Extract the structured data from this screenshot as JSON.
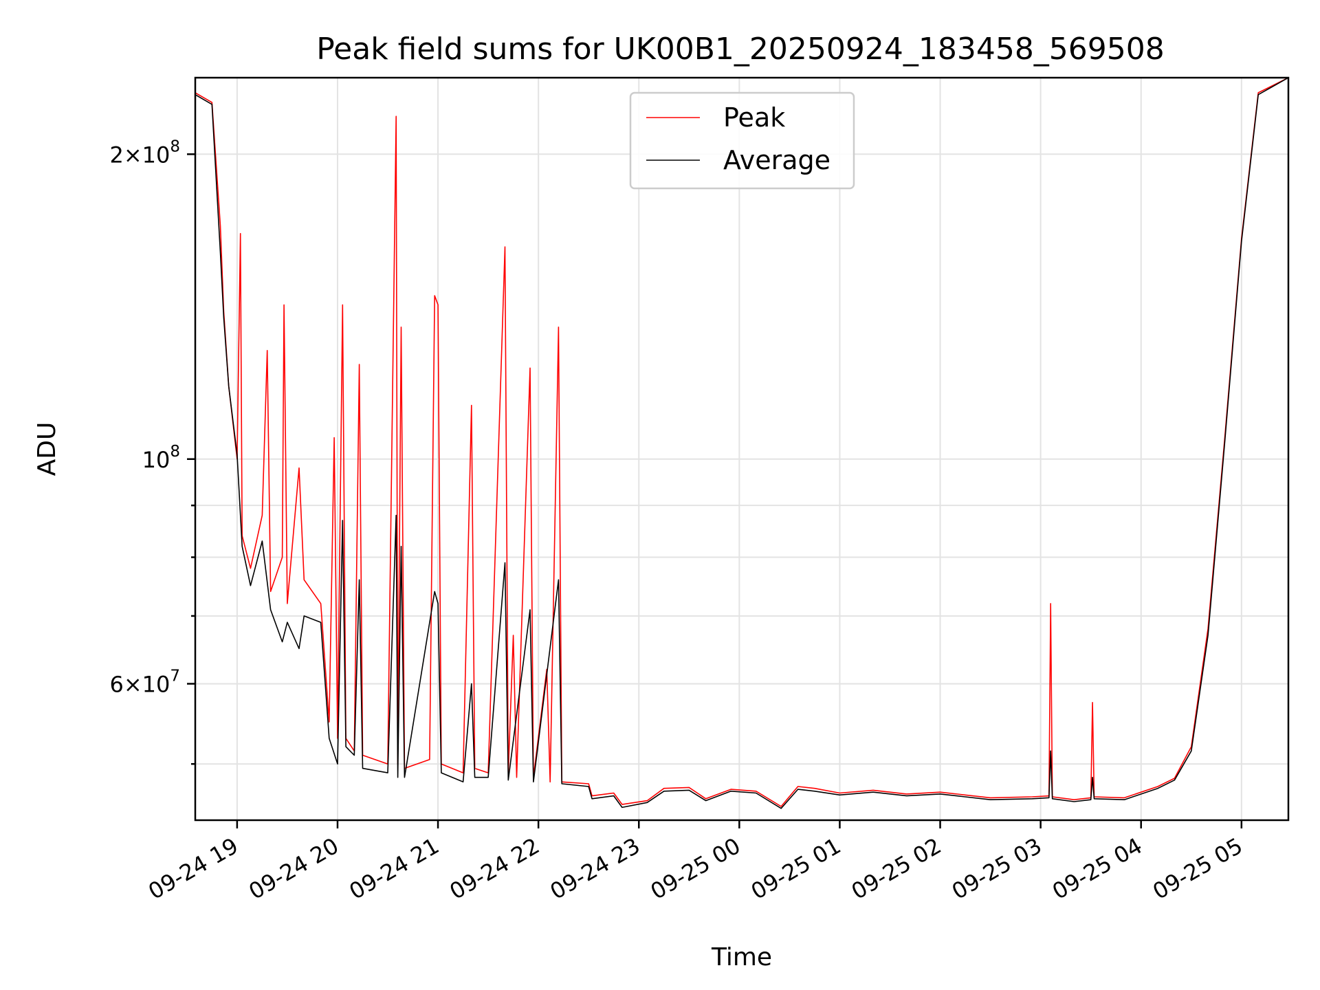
{
  "chart_data": {
    "type": "line",
    "title": "Peak field sums for UK00B1_20250924_183458_569508",
    "xlabel": "Time",
    "ylabel": "ADU",
    "scale_y": "log",
    "grid": true,
    "legend_position": "upper center",
    "xlim": [
      "2025-09-24 18:35",
      "2025-09-25 05:28"
    ],
    "ylim": [
      44000000,
      238000000
    ],
    "x_ticks": [
      {
        "value": "2025-09-24 19:00",
        "label": "09-24 19"
      },
      {
        "value": "2025-09-24 20:00",
        "label": "09-24 20"
      },
      {
        "value": "2025-09-24 21:00",
        "label": "09-24 21"
      },
      {
        "value": "2025-09-24 22:00",
        "label": "09-24 22"
      },
      {
        "value": "2025-09-24 23:00",
        "label": "09-24 23"
      },
      {
        "value": "2025-09-25 00:00",
        "label": "09-25 00"
      },
      {
        "value": "2025-09-25 01:00",
        "label": "09-25 01"
      },
      {
        "value": "2025-09-25 02:00",
        "label": "09-25 02"
      },
      {
        "value": "2025-09-25 03:00",
        "label": "09-25 03"
      },
      {
        "value": "2025-09-25 04:00",
        "label": "09-25 04"
      },
      {
        "value": "2025-09-25 05:00",
        "label": "09-25 05"
      }
    ],
    "y_major_ticks": [
      {
        "value": 60000000,
        "mantissa": "6",
        "exponent": "7"
      },
      {
        "value": 100000000,
        "mantissa": "",
        "exponent": "8"
      },
      {
        "value": 200000000,
        "mantissa": "2",
        "exponent": "8"
      }
    ],
    "y_minor_ticks": [
      50000000,
      70000000,
      80000000,
      90000000
    ],
    "series": [
      {
        "name": "Peak",
        "color": "#ff0000",
        "points": [
          [
            "2025-09-24 18:35",
            230000000
          ],
          [
            "2025-09-24 18:45",
            225000000
          ],
          [
            "2025-09-24 18:50",
            170000000
          ],
          [
            "2025-09-24 18:52",
            140000000
          ],
          [
            "2025-09-24 18:55",
            118000000
          ],
          [
            "2025-09-24 19:00",
            100000000
          ],
          [
            "2025-09-24 19:02",
            167000000
          ],
          [
            "2025-09-24 19:03",
            84000000
          ],
          [
            "2025-09-24 19:08",
            78000000
          ],
          [
            "2025-09-24 19:15",
            88000000
          ],
          [
            "2025-09-24 19:18",
            128000000
          ],
          [
            "2025-09-24 19:20",
            74000000
          ],
          [
            "2025-09-24 19:27",
            80000000
          ],
          [
            "2025-09-24 19:28",
            142000000
          ],
          [
            "2025-09-24 19:30",
            72000000
          ],
          [
            "2025-09-24 19:37",
            98000000
          ],
          [
            "2025-09-24 19:40",
            76000000
          ],
          [
            "2025-09-24 19:50",
            72000000
          ],
          [
            "2025-09-24 19:55",
            55000000
          ],
          [
            "2025-09-24 19:58",
            105000000
          ],
          [
            "2025-09-24 20:00",
            53000000
          ],
          [
            "2025-09-24 20:03",
            142000000
          ],
          [
            "2025-09-24 20:05",
            53000000
          ],
          [
            "2025-09-24 20:10",
            51500000
          ],
          [
            "2025-09-24 20:13",
            124000000
          ],
          [
            "2025-09-24 20:15",
            51000000
          ],
          [
            "2025-09-24 20:30",
            50000000
          ],
          [
            "2025-09-24 20:35",
            218000000
          ],
          [
            "2025-09-24 20:36",
            50000000
          ],
          [
            "2025-09-24 20:38",
            135000000
          ],
          [
            "2025-09-24 20:40",
            49500000
          ],
          [
            "2025-09-24 20:55",
            50500000
          ],
          [
            "2025-09-24 20:58",
            145000000
          ],
          [
            "2025-09-24 21:00",
            142000000
          ],
          [
            "2025-09-24 21:02",
            50000000
          ],
          [
            "2025-09-24 21:15",
            49000000
          ],
          [
            "2025-09-24 21:20",
            113000000
          ],
          [
            "2025-09-24 21:22",
            49500000
          ],
          [
            "2025-09-24 21:30",
            49000000
          ],
          [
            "2025-09-24 21:40",
            162000000
          ],
          [
            "2025-09-24 21:42",
            49000000
          ],
          [
            "2025-09-24 21:45",
            67000000
          ],
          [
            "2025-09-24 21:47",
            48500000
          ],
          [
            "2025-09-24 21:55",
            123000000
          ],
          [
            "2025-09-24 21:57",
            48500000
          ],
          [
            "2025-09-24 22:05",
            62000000
          ],
          [
            "2025-09-24 22:07",
            48000000
          ],
          [
            "2025-09-24 22:12",
            135000000
          ],
          [
            "2025-09-24 22:14",
            48000000
          ],
          [
            "2025-09-24 22:30",
            47800000
          ],
          [
            "2025-09-24 22:32",
            46500000
          ],
          [
            "2025-09-24 22:45",
            46800000
          ],
          [
            "2025-09-24 22:50",
            45600000
          ],
          [
            "2025-09-24 23:05",
            46000000
          ],
          [
            "2025-09-24 23:15",
            47300000
          ],
          [
            "2025-09-24 23:30",
            47400000
          ],
          [
            "2025-09-24 23:40",
            46200000
          ],
          [
            "2025-09-24 23:55",
            47200000
          ],
          [
            "2025-09-25 00:10",
            47000000
          ],
          [
            "2025-09-25 00:25",
            45400000
          ],
          [
            "2025-09-25 00:35",
            47500000
          ],
          [
            "2025-09-25 00:45",
            47300000
          ],
          [
            "2025-09-25 01:00",
            46800000
          ],
          [
            "2025-09-25 01:20",
            47100000
          ],
          [
            "2025-09-25 01:40",
            46700000
          ],
          [
            "2025-09-25 02:00",
            46900000
          ],
          [
            "2025-09-25 02:30",
            46300000
          ],
          [
            "2025-09-25 02:55",
            46400000
          ],
          [
            "2025-09-25 03:05",
            46500000
          ],
          [
            "2025-09-25 03:06",
            72000000
          ],
          [
            "2025-09-25 03:07",
            46400000
          ],
          [
            "2025-09-25 03:20",
            46100000
          ],
          [
            "2025-09-25 03:30",
            46300000
          ],
          [
            "2025-09-25 03:31",
            57500000
          ],
          [
            "2025-09-25 03:32",
            46400000
          ],
          [
            "2025-09-25 03:50",
            46300000
          ],
          [
            "2025-09-25 04:10",
            47500000
          ],
          [
            "2025-09-25 04:20",
            48400000
          ],
          [
            "2025-09-25 04:30",
            52000000
          ],
          [
            "2025-09-25 04:40",
            68000000
          ],
          [
            "2025-09-25 04:50",
            105000000
          ],
          [
            "2025-09-25 05:00",
            165000000
          ],
          [
            "2025-09-25 05:10",
            230000000
          ],
          [
            "2025-09-25 05:28",
            238000000
          ]
        ]
      },
      {
        "name": "Average",
        "color": "#000000",
        "points": [
          [
            "2025-09-24 18:35",
            229000000
          ],
          [
            "2025-09-24 18:45",
            224000000
          ],
          [
            "2025-09-24 18:50",
            160000000
          ],
          [
            "2025-09-24 18:52",
            138000000
          ],
          [
            "2025-09-24 18:55",
            118000000
          ],
          [
            "2025-09-24 19:00",
            101000000
          ],
          [
            "2025-09-24 19:03",
            82000000
          ],
          [
            "2025-09-24 19:08",
            75000000
          ],
          [
            "2025-09-24 19:15",
            83000000
          ],
          [
            "2025-09-24 19:20",
            71000000
          ],
          [
            "2025-09-24 19:27",
            66000000
          ],
          [
            "2025-09-24 19:30",
            69000000
          ],
          [
            "2025-09-24 19:37",
            65000000
          ],
          [
            "2025-09-24 19:40",
            70000000
          ],
          [
            "2025-09-24 19:50",
            69000000
          ],
          [
            "2025-09-24 19:55",
            53000000
          ],
          [
            "2025-09-24 20:00",
            50000000
          ],
          [
            "2025-09-24 20:03",
            87000000
          ],
          [
            "2025-09-24 20:05",
            52000000
          ],
          [
            "2025-09-24 20:10",
            51000000
          ],
          [
            "2025-09-24 20:13",
            76000000
          ],
          [
            "2025-09-24 20:15",
            49500000
          ],
          [
            "2025-09-24 20:30",
            49000000
          ],
          [
            "2025-09-24 20:35",
            88000000
          ],
          [
            "2025-09-24 20:36",
            48500000
          ],
          [
            "2025-09-24 20:38",
            82000000
          ],
          [
            "2025-09-24 20:40",
            48500000
          ],
          [
            "2025-09-24 20:58",
            74000000
          ],
          [
            "2025-09-24 21:00",
            72000000
          ],
          [
            "2025-09-24 21:02",
            49000000
          ],
          [
            "2025-09-24 21:15",
            48000000
          ],
          [
            "2025-09-24 21:20",
            60000000
          ],
          [
            "2025-09-24 21:22",
            48500000
          ],
          [
            "2025-09-24 21:30",
            48500000
          ],
          [
            "2025-09-24 21:40",
            79000000
          ],
          [
            "2025-09-24 21:42",
            48200000
          ],
          [
            "2025-09-24 21:55",
            71000000
          ],
          [
            "2025-09-24 21:57",
            48000000
          ],
          [
            "2025-09-24 22:12",
            76000000
          ],
          [
            "2025-09-24 22:14",
            47800000
          ],
          [
            "2025-09-24 22:30",
            47500000
          ],
          [
            "2025-09-24 22:32",
            46200000
          ],
          [
            "2025-09-24 22:45",
            46500000
          ],
          [
            "2025-09-24 22:50",
            45300000
          ],
          [
            "2025-09-24 23:05",
            45800000
          ],
          [
            "2025-09-24 23:15",
            47000000
          ],
          [
            "2025-09-24 23:30",
            47100000
          ],
          [
            "2025-09-24 23:40",
            46000000
          ],
          [
            "2025-09-24 23:55",
            47000000
          ],
          [
            "2025-09-25 00:10",
            46800000
          ],
          [
            "2025-09-25 00:25",
            45200000
          ],
          [
            "2025-09-25 00:35",
            47200000
          ],
          [
            "2025-09-25 00:45",
            47000000
          ],
          [
            "2025-09-25 01:00",
            46600000
          ],
          [
            "2025-09-25 01:20",
            46900000
          ],
          [
            "2025-09-25 01:40",
            46500000
          ],
          [
            "2025-09-25 02:00",
            46700000
          ],
          [
            "2025-09-25 02:30",
            46100000
          ],
          [
            "2025-09-25 02:55",
            46200000
          ],
          [
            "2025-09-25 03:05",
            46300000
          ],
          [
            "2025-09-25 03:06",
            51500000
          ],
          [
            "2025-09-25 03:07",
            46200000
          ],
          [
            "2025-09-25 03:20",
            45900000
          ],
          [
            "2025-09-25 03:30",
            46100000
          ],
          [
            "2025-09-25 03:31",
            48500000
          ],
          [
            "2025-09-25 03:32",
            46200000
          ],
          [
            "2025-09-25 03:50",
            46100000
          ],
          [
            "2025-09-25 04:10",
            47300000
          ],
          [
            "2025-09-25 04:20",
            48200000
          ],
          [
            "2025-09-25 04:30",
            51500000
          ],
          [
            "2025-09-25 04:40",
            67000000
          ],
          [
            "2025-09-25 04:50",
            104000000
          ],
          [
            "2025-09-25 05:00",
            164000000
          ],
          [
            "2025-09-25 05:10",
            229000000
          ],
          [
            "2025-09-25 05:28",
            238000000
          ]
        ]
      }
    ]
  }
}
